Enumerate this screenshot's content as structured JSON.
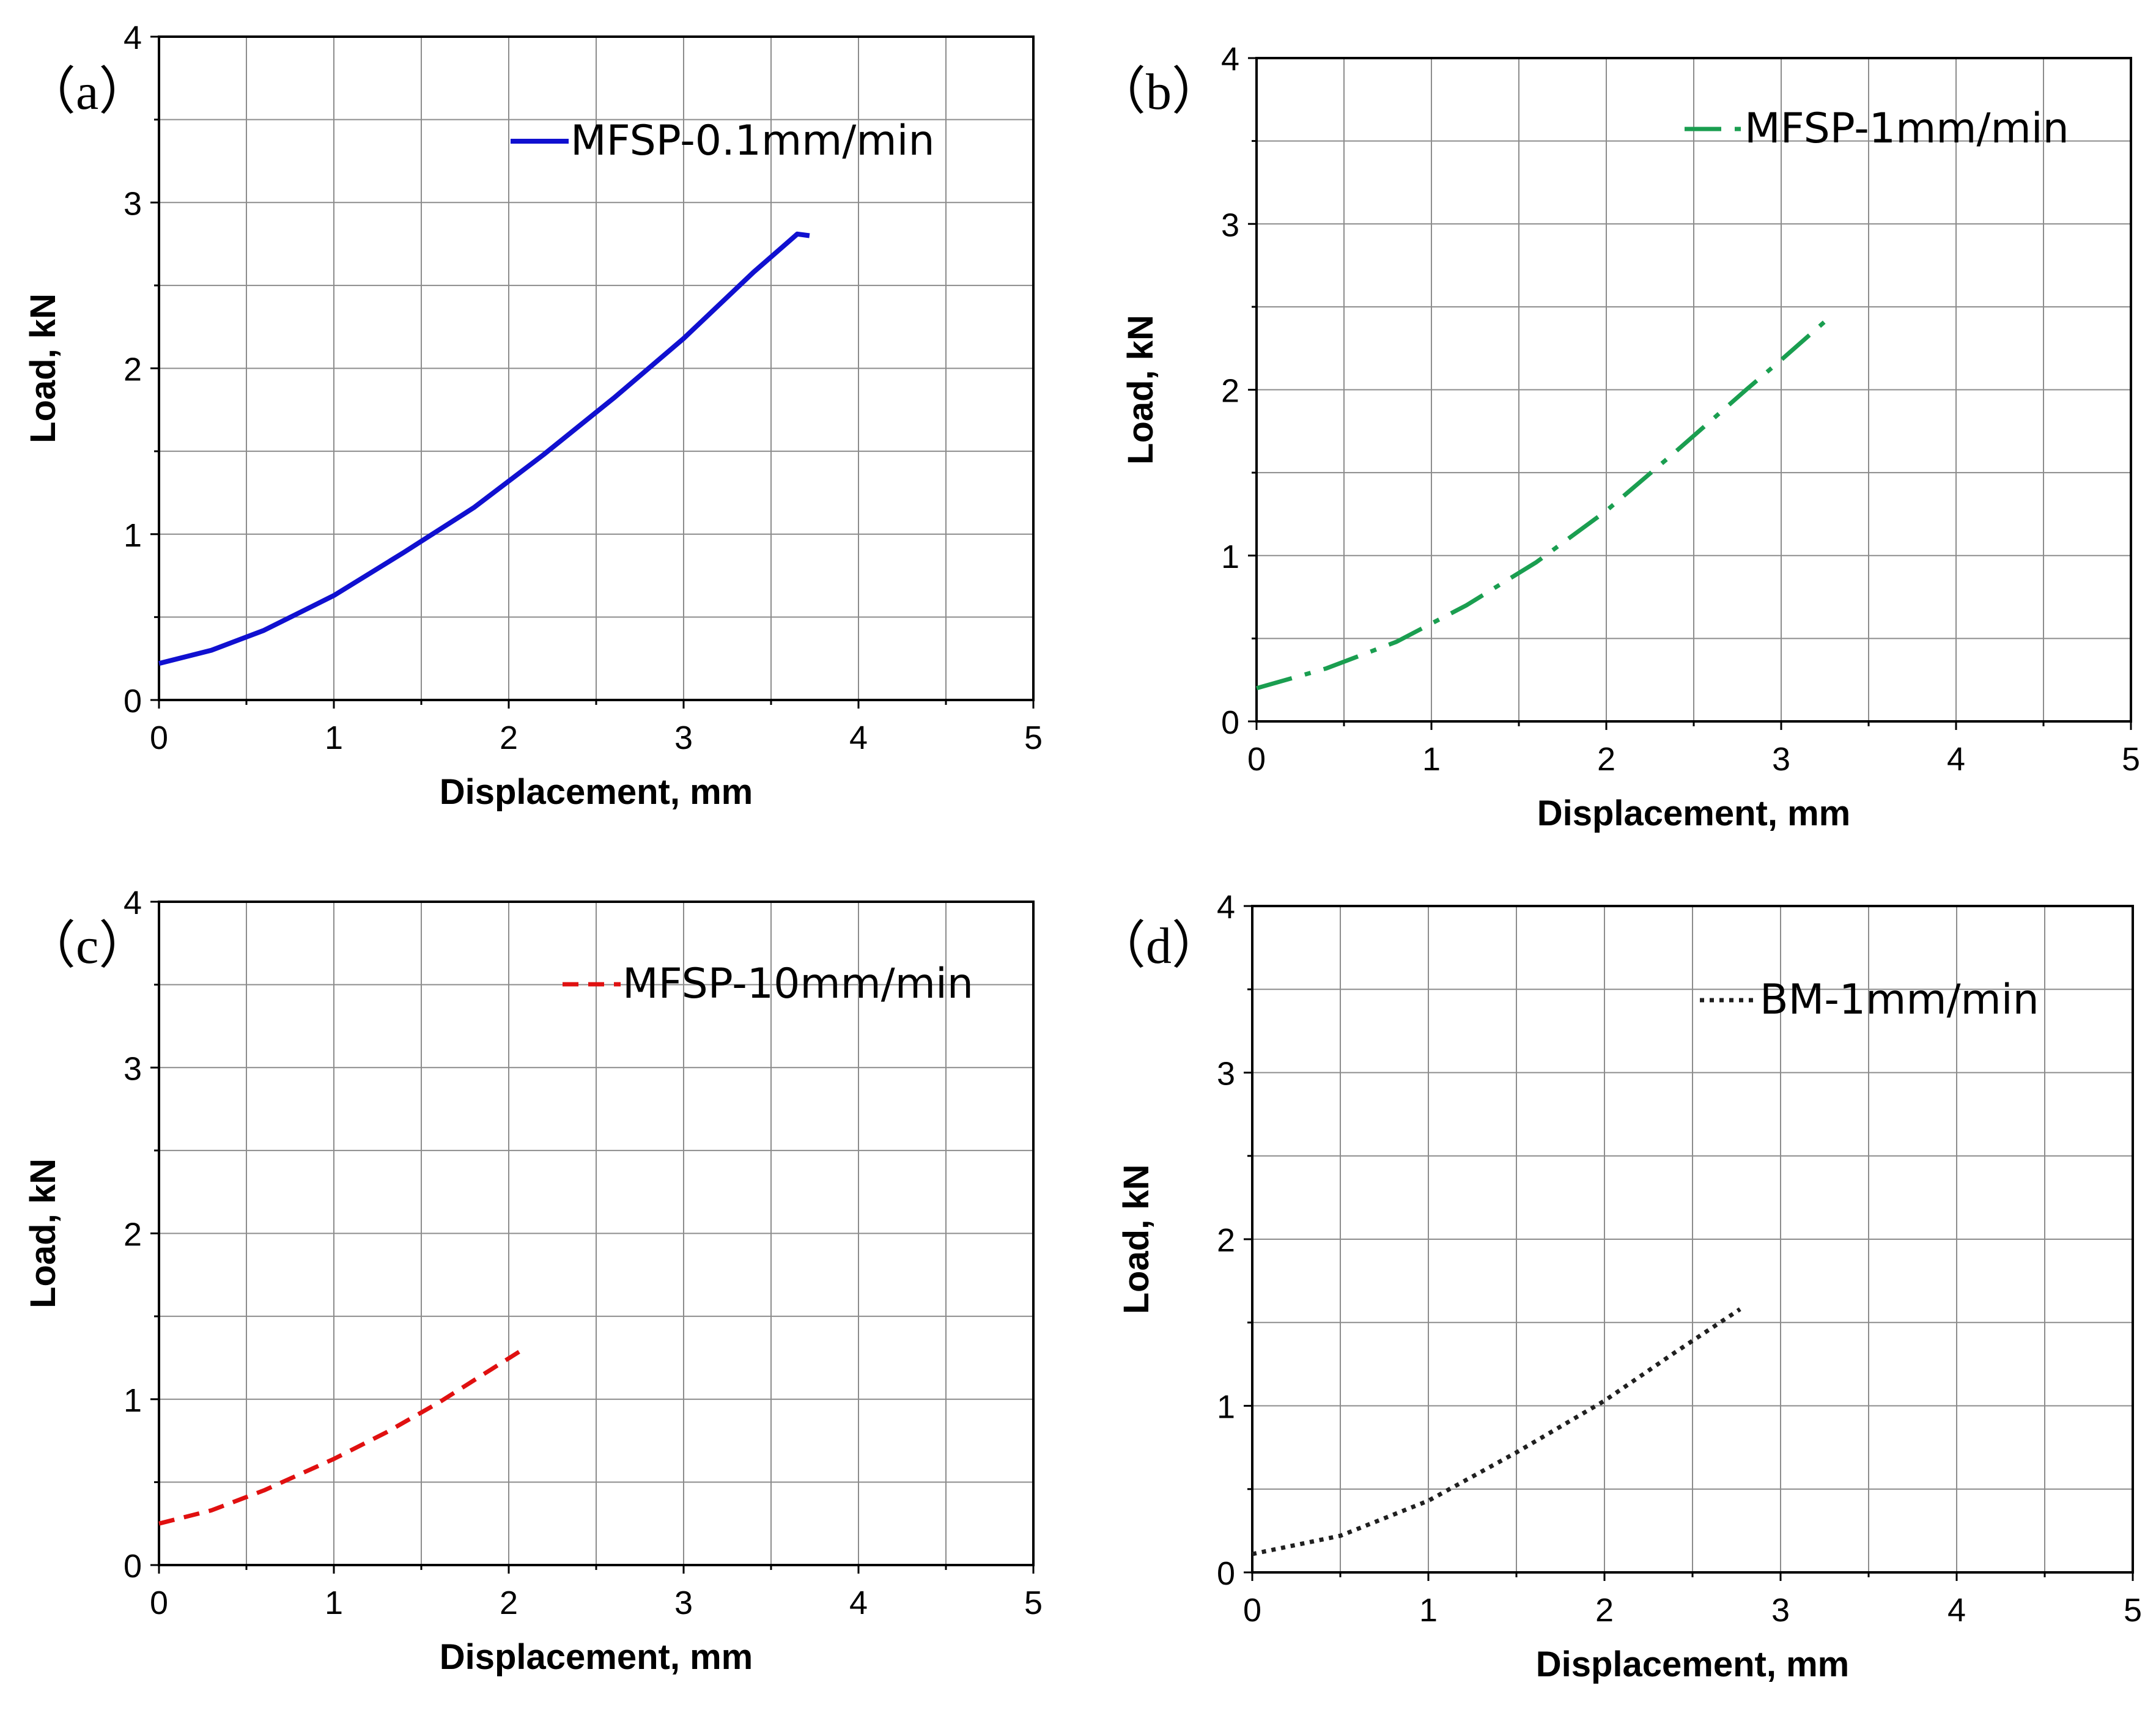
{
  "chart_data": [
    {
      "type": "line",
      "panel_label": "（a）",
      "xlabel": "Displacement, mm",
      "ylabel": "Load, kN",
      "xlim": [
        0,
        5
      ],
      "ylim": [
        0,
        4
      ],
      "x_ticks": [
        "0",
        "1",
        "2",
        "3",
        "4",
        "5"
      ],
      "y_ticks": [
        "0",
        "1",
        "2",
        "3",
        "4"
      ],
      "grid": true,
      "legend_position": "top-right",
      "series": [
        {
          "name": "MFSP-0.1mm/min",
          "color": "#1010d0",
          "style": "solid",
          "x": [
            0,
            0.3,
            0.6,
            1.0,
            1.4,
            1.8,
            2.2,
            2.6,
            3.0,
            3.4,
            3.65,
            3.72
          ],
          "y": [
            0.22,
            0.3,
            0.42,
            0.63,
            0.89,
            1.16,
            1.48,
            1.82,
            2.18,
            2.58,
            2.81,
            2.8
          ]
        }
      ]
    },
    {
      "type": "line",
      "panel_label": "（b）",
      "xlabel": "Displacement, mm",
      "ylabel": "Load, kN",
      "xlim": [
        0,
        5
      ],
      "ylim": [
        0,
        4
      ],
      "x_ticks": [
        "0",
        "1",
        "2",
        "3",
        "4",
        "5"
      ],
      "y_ticks": [
        "0",
        "1",
        "2",
        "3",
        "4"
      ],
      "grid": true,
      "legend_position": "top-right",
      "series": [
        {
          "name": "MFSP-1mm/min",
          "color": "#1a9e50",
          "style": "dashdot",
          "x": [
            0,
            0.4,
            0.8,
            1.2,
            1.6,
            2.0,
            2.4,
            2.8,
            3.0,
            3.27
          ],
          "y": [
            0.2,
            0.32,
            0.48,
            0.7,
            0.96,
            1.27,
            1.63,
            2.0,
            2.18,
            2.43
          ]
        }
      ]
    },
    {
      "type": "line",
      "panel_label": "（c）",
      "xlabel": "Displacement, mm",
      "ylabel": "Load, kN",
      "xlim": [
        0,
        5
      ],
      "ylim": [
        0,
        4
      ],
      "x_ticks": [
        "0",
        "1",
        "2",
        "3",
        "4",
        "5"
      ],
      "y_ticks": [
        "0",
        "1",
        "2",
        "3",
        "4"
      ],
      "grid": true,
      "legend_position": "top-right",
      "series": [
        {
          "name": "MFSP-10mm/min",
          "color": "#e01010",
          "style": "dashed",
          "x": [
            0,
            0.3,
            0.6,
            1.0,
            1.3,
            1.6,
            1.9,
            2.08
          ],
          "y": [
            0.25,
            0.33,
            0.45,
            0.64,
            0.8,
            0.98,
            1.18,
            1.3
          ]
        }
      ]
    },
    {
      "type": "line",
      "panel_label": "（d）",
      "xlabel": "Displacement, mm",
      "ylabel": "Load, kN",
      "xlim": [
        0,
        5
      ],
      "ylim": [
        0,
        4
      ],
      "x_ticks": [
        "0",
        "1",
        "2",
        "3",
        "4",
        "5"
      ],
      "y_ticks": [
        "0",
        "1",
        "2",
        "3",
        "4"
      ],
      "grid": true,
      "legend_position": "top-right",
      "series": [
        {
          "name": "BM-1mm/min",
          "color": "#202020",
          "style": "dotted",
          "x": [
            0,
            0.5,
            1.0,
            1.5,
            2.0,
            2.4,
            2.77
          ],
          "y": [
            0.11,
            0.22,
            0.43,
            0.72,
            1.03,
            1.32,
            1.58
          ]
        }
      ]
    }
  ]
}
